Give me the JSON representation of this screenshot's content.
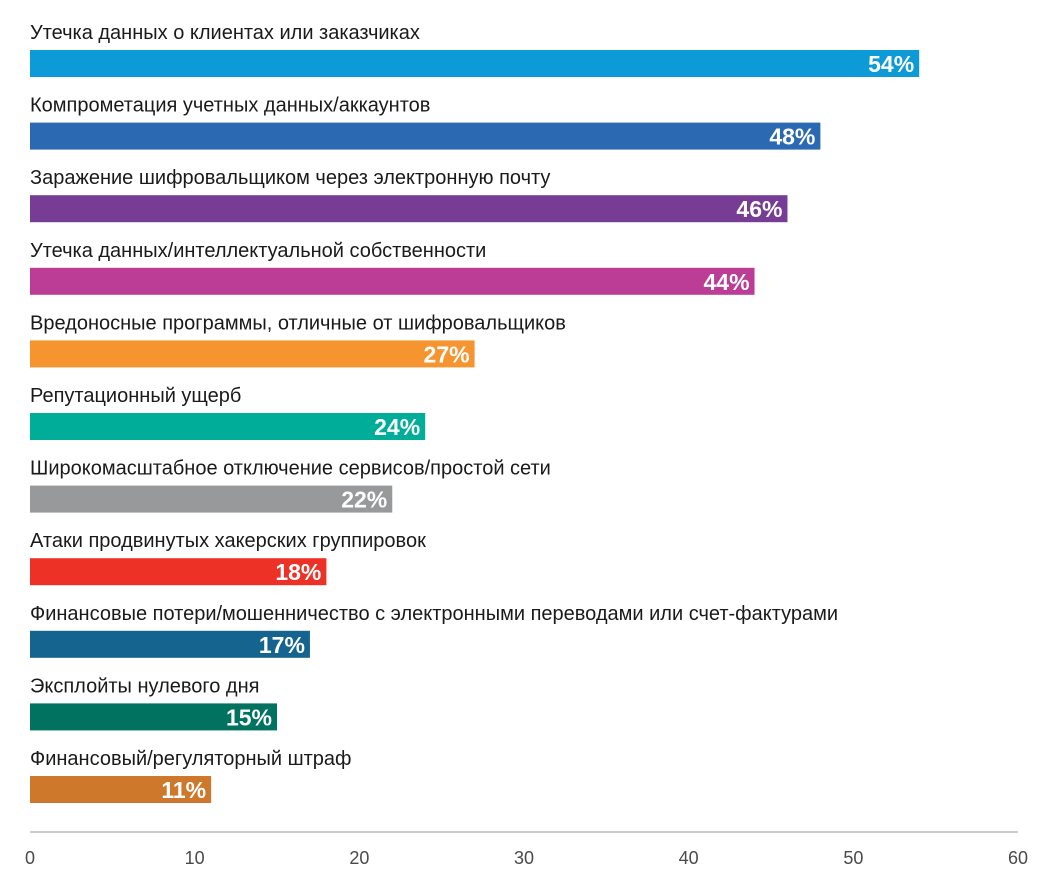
{
  "chart_data": {
    "type": "bar",
    "orientation": "horizontal",
    "categories": [
      "Утечка данных о клиентах или заказчиках",
      "Компрометация учетных данных/аккаунтов",
      "Заражение шифровальщиком через электронную почту",
      "Утечка данных/интеллектуальной собственности",
      "Вредоносные программы, отличные от шифровальщиков",
      "Репутационный ущерб",
      "Широкомасштабное отключение сервисов/простой сети",
      "Атаки продвинутых хакерских группировок",
      "Финансовые потери/мошенничество с электронными переводами или счет-фактурами",
      "Эксплойты нулевого дня",
      "Финансовый/регуляторный штраф"
    ],
    "values": [
      54,
      48,
      46,
      44,
      27,
      24,
      22,
      18,
      17,
      15,
      11
    ],
    "value_labels": [
      "54%",
      "48%",
      "46%",
      "44%",
      "27%",
      "24%",
      "22%",
      "18%",
      "17%",
      "15%",
      "11%"
    ],
    "colors": [
      "#0d9bd8",
      "#2b69b3",
      "#773c96",
      "#bb3d95",
      "#f6942f",
      "#00ad98",
      "#98999b",
      "#ee3127",
      "#15638f",
      "#00725f",
      "#cd782a"
    ],
    "xlim": [
      0,
      60
    ],
    "xticks": [
      "0",
      "10",
      "20",
      "30",
      "40",
      "50",
      "60"
    ],
    "title": "",
    "xlabel": "",
    "ylabel": "",
    "grid": false,
    "legend": "none"
  }
}
